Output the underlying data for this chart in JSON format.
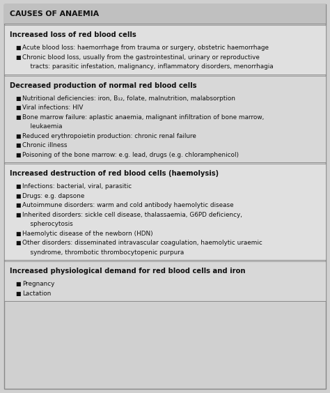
{
  "title": "CAUSES OF ANAEMIA",
  "bg_color": "#d0d0d0",
  "title_bg_color": "#c0c0c0",
  "section_colors": [
    "#e0e0e0",
    "#d8d8d8"
  ],
  "border_color": "#888888",
  "text_color": "#111111",
  "figsize": [
    4.74,
    5.64
  ],
  "dpi": 100,
  "sections": [
    {
      "heading": "Increased loss of red blood cells",
      "items": [
        [
          "Acute blood loss: haemorrhage from trauma or surgery, obstetric haemorrhage"
        ],
        [
          "Chronic blood loss, usually from the gastrointestinal, urinary or reproductive",
          "    tracts: parasitic infestation, malignancy, inflammatory disorders, menorrhagia"
        ]
      ]
    },
    {
      "heading": "Decreased production of normal red blood cells",
      "items": [
        [
          "Nutritional deficiencies: iron, B₁₂, folate, malnutrition, malabsorption"
        ],
        [
          "Viral infections: HIV"
        ],
        [
          "Bone marrow failure: aplastic anaemia, malignant infiltration of bone marrow,",
          "    leukaemia"
        ],
        [
          "Reduced erythropoietin production: chronic renal failure"
        ],
        [
          "Chronic illness"
        ],
        [
          "Poisoning of the bone marrow: e.g. lead, drugs (e.g. chloramphenicol)"
        ]
      ]
    },
    {
      "heading": "Increased destruction of red blood cells (haemolysis)",
      "items": [
        [
          "Infections: bacterial, viral, parasitic"
        ],
        [
          "Drugs: e.g. dapsone"
        ],
        [
          "Autoimmune disorders: warm and cold antibody haemolytic disease"
        ],
        [
          "Inherited disorders: sickle cell disease, thalassaemia, G6PD deficiency,",
          "    spherocytosis"
        ],
        [
          "Haemolytic disease of the newborn (HDN)"
        ],
        [
          "Other disorders: disseminated intravascular coagulation, haemolytic uraemic",
          "    syndrome, thrombotic thrombocytopenic purpura"
        ]
      ]
    },
    {
      "heading": "Increased physiological demand for red blood cells and iron",
      "items": [
        [
          "Pregnancy"
        ],
        [
          "Lactation"
        ]
      ]
    }
  ]
}
